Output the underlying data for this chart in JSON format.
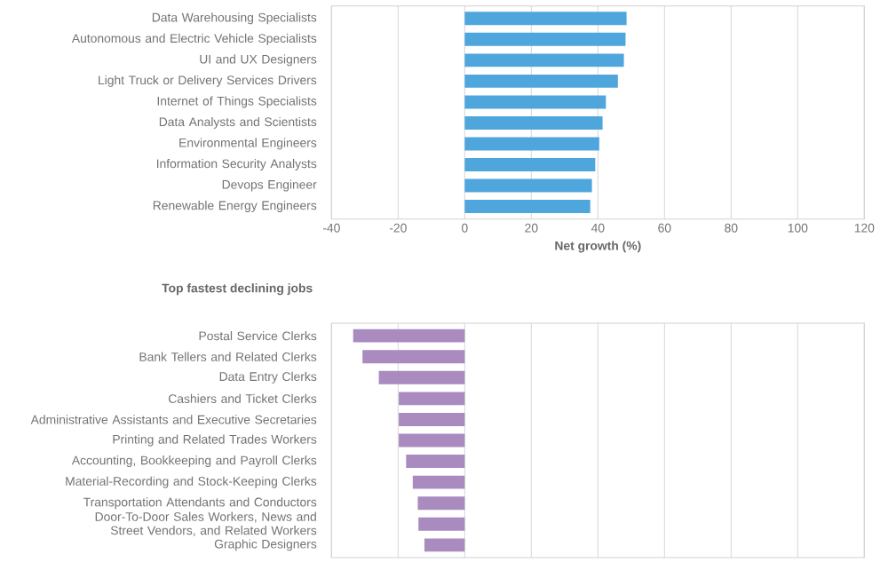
{
  "chart_data": [
    {
      "type": "bar",
      "orientation": "horizontal",
      "categories": [
        "Data Warehousing Specialists",
        "Autonomous and Electric Vehicle Specialists",
        "UI and UX Designers",
        "Light Truck or Delivery Services Drivers",
        "Internet of Things Specialists",
        "Data Analysts and Scientists",
        "Environmental Engineers",
        "Information Security Analysts",
        "Devops Engineer",
        "Renewable Energy Engineers"
      ],
      "values": [
        48.6,
        48.3,
        47.8,
        46,
        42.4,
        41.4,
        40.4,
        39.2,
        38.2,
        37.7
      ],
      "color": "#4ea6dc",
      "xlabel": "Net growth (%)",
      "xlim": [
        -40,
        120
      ],
      "xticks": [
        -40,
        -20,
        0,
        20,
        40,
        60,
        80,
        100,
        120
      ],
      "grid": "x"
    },
    {
      "type": "bar",
      "orientation": "horizontal",
      "title": "Top fastest declining jobs",
      "categories": [
        "Postal Service Clerks",
        "Bank Tellers and Related Clerks",
        "Data Entry Clerks",
        "Cashiers and Ticket Clerks",
        "Administrative Assistants and Executive Secretaries",
        "Printing and Related Trades Workers",
        "Accounting, Bookkeeping and Payroll Clerks",
        "Material-Recording and Stock-Keeping Clerks",
        "Transportation Attendants and Conductors",
        "Door-To-Door Sales Workers, News and Street Vendors, and Related Workers",
        "Graphic Designers"
      ],
      "values": [
        -33.5,
        -30.7,
        -25.8,
        -19.8,
        -19.8,
        -19.8,
        -17.6,
        -15.6,
        -14.1,
        -13.9,
        -12.1
      ],
      "color": "#a98bbf",
      "xlim": [
        -40,
        120
      ],
      "xticks": [
        -40,
        -20,
        0,
        20,
        40,
        60,
        80,
        100,
        120
      ],
      "grid": "x",
      "tick_labels": "y"
    }
  ]
}
